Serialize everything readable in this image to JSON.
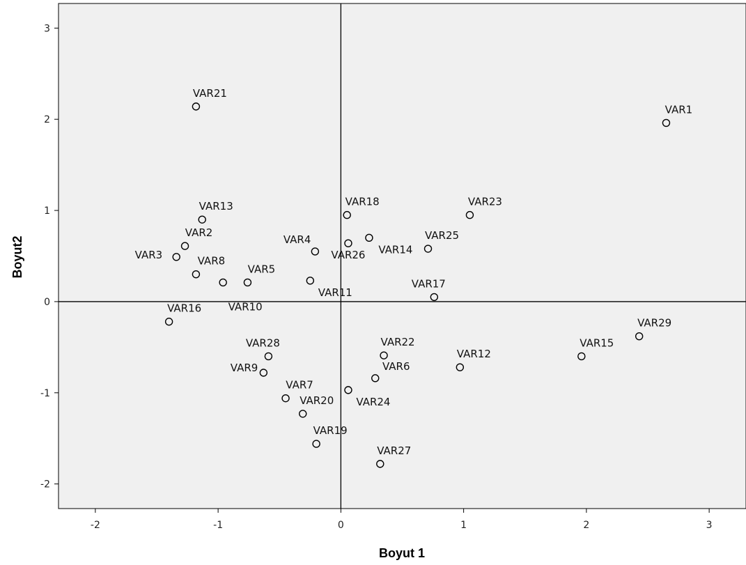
{
  "chart_data": {
    "type": "scatter",
    "xlabel": "Boyut 1",
    "ylabel": "Boyut2",
    "xlim": [
      -2.3,
      3.3
    ],
    "ylim": [
      -2.27,
      3.27
    ],
    "xticks": [
      -2,
      -1,
      0,
      1,
      2,
      3
    ],
    "yticks": [
      -2,
      -1,
      0,
      1,
      2,
      3
    ],
    "reference_lines": {
      "x": 0,
      "y": 0
    },
    "grid": false,
    "plot_background": "#f0f0f0",
    "marker": "open-circle",
    "points": [
      {
        "label": "VAR1",
        "x": 2.65,
        "y": 1.96
      },
      {
        "label": "VAR2",
        "x": -1.27,
        "y": 0.61
      },
      {
        "label": "VAR3",
        "x": -1.34,
        "y": 0.49
      },
      {
        "label": "VAR4",
        "x": -0.21,
        "y": 0.55
      },
      {
        "label": "VAR5",
        "x": -0.76,
        "y": 0.21
      },
      {
        "label": "VAR6",
        "x": 0.28,
        "y": -0.84
      },
      {
        "label": "VAR7",
        "x": -0.45,
        "y": -1.06
      },
      {
        "label": "VAR8",
        "x": -1.18,
        "y": 0.3
      },
      {
        "label": "VAR9",
        "x": -0.63,
        "y": -0.78
      },
      {
        "label": "VAR10",
        "x": -0.96,
        "y": 0.21
      },
      {
        "label": "VAR11",
        "x": -0.25,
        "y": 0.23
      },
      {
        "label": "VAR12",
        "x": 0.97,
        "y": -0.72
      },
      {
        "label": "VAR13",
        "x": -1.13,
        "y": 0.9
      },
      {
        "label": "VAR14",
        "x": 0.23,
        "y": 0.7
      },
      {
        "label": "VAR15",
        "x": 1.96,
        "y": -0.6
      },
      {
        "label": "VAR16",
        "x": -1.4,
        "y": -0.22
      },
      {
        "label": "VAR17",
        "x": 0.76,
        "y": 0.05
      },
      {
        "label": "VAR18",
        "x": 0.05,
        "y": 0.95
      },
      {
        "label": "VAR19",
        "x": -0.2,
        "y": -1.56
      },
      {
        "label": "VAR20",
        "x": -0.31,
        "y": -1.23
      },
      {
        "label": "VAR21",
        "x": -1.18,
        "y": 2.14
      },
      {
        "label": "VAR22",
        "x": 0.35,
        "y": -0.59
      },
      {
        "label": "VAR23",
        "x": 1.05,
        "y": 0.95
      },
      {
        "label": "VAR24",
        "x": 0.06,
        "y": -0.97
      },
      {
        "label": "VAR25",
        "x": 0.71,
        "y": 0.58
      },
      {
        "label": "VAR26",
        "x": 0.06,
        "y": 0.64
      },
      {
        "label": "VAR27",
        "x": 0.32,
        "y": -1.78
      },
      {
        "label": "VAR28",
        "x": -0.59,
        "y": -0.6
      },
      {
        "label": "VAR29",
        "x": 2.43,
        "y": -0.38
      }
    ]
  }
}
